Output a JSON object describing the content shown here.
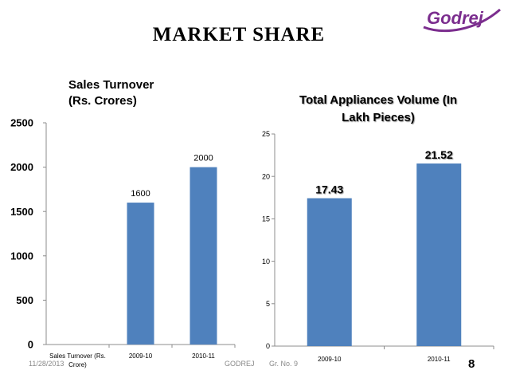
{
  "slide": {
    "title": "MARKET SHARE",
    "logo_text": "Godrej",
    "date": "11/28/2013",
    "company": "GODREJ",
    "group": "Gr. No. 9",
    "page_number": "8"
  },
  "colors": {
    "bar": "#4f81bd",
    "axis": "#8c8c8c",
    "logo": "#7b2d8e"
  },
  "chart_data": [
    {
      "type": "bar",
      "title_lines": [
        "Sales Turnover",
        "(Rs. Crores)"
      ],
      "categories": [
        "Sales Turnover (Rs. Crore)",
        "2009-10",
        "2010-11"
      ],
      "values": [
        null,
        1600,
        2000
      ],
      "data_labels": [
        "",
        "1600",
        "2000"
      ],
      "yticks": [
        "0",
        "500",
        "1000",
        "1500",
        "2000",
        "2500"
      ],
      "ylim": [
        0,
        2500
      ],
      "grid": false,
      "legend": "none"
    },
    {
      "type": "bar",
      "title_lines": [
        "Total Appliances Volume (In",
        "Lakh Pieces)"
      ],
      "categories": [
        "2009-10",
        "2010-11"
      ],
      "values": [
        17.43,
        21.52
      ],
      "data_labels": [
        "17.43",
        "21.52"
      ],
      "yticks": [
        "0",
        "5",
        "10",
        "15",
        "20",
        "25"
      ],
      "ylim": [
        0,
        25
      ],
      "grid": false,
      "legend": "none"
    }
  ]
}
